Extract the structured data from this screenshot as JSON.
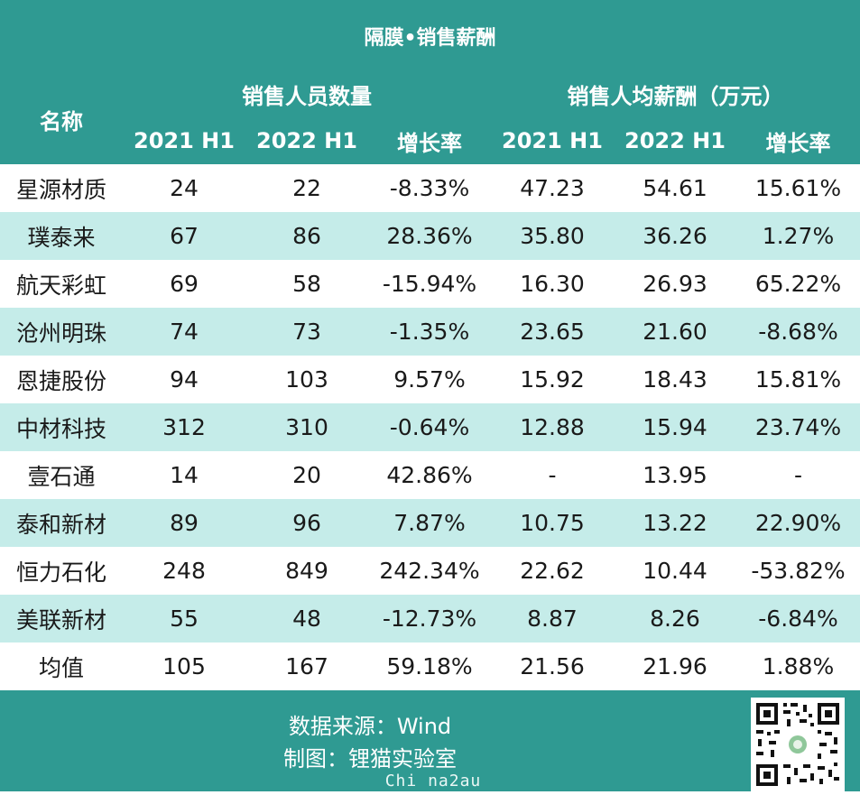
{
  "title": "隔膜•销售薪酬",
  "header": {
    "name_col": "名称",
    "group1": "销售人员数量",
    "group2": "销售人均薪酬（万元）",
    "sub_columns": [
      "2021 H1",
      "2022 H1",
      "增长率",
      "2021 H1",
      "2022 H1",
      "增长率"
    ]
  },
  "rows": [
    {
      "name": "星源材质",
      "v": [
        "24",
        "22",
        "-8.33%",
        "47.23",
        "54.61",
        "15.61%"
      ]
    },
    {
      "name": "璞泰来",
      "v": [
        "67",
        "86",
        "28.36%",
        "35.80",
        "36.26",
        "1.27%"
      ]
    },
    {
      "name": "航天彩虹",
      "v": [
        "69",
        "58",
        "-15.94%",
        "16.30",
        "26.93",
        "65.22%"
      ]
    },
    {
      "name": "沧州明珠",
      "v": [
        "74",
        "73",
        "-1.35%",
        "23.65",
        "21.60",
        "-8.68%"
      ]
    },
    {
      "name": "恩捷股份",
      "v": [
        "94",
        "103",
        "9.57%",
        "15.92",
        "18.43",
        "15.81%"
      ]
    },
    {
      "name": "中材科技",
      "v": [
        "312",
        "310",
        "-0.64%",
        "12.88",
        "15.94",
        "23.74%"
      ]
    },
    {
      "name": "壹石通",
      "v": [
        "14",
        "20",
        "42.86%",
        "-",
        "13.95",
        "-"
      ]
    },
    {
      "name": "泰和新材",
      "v": [
        "89",
        "96",
        "7.87%",
        "10.75",
        "13.22",
        "22.90%"
      ]
    },
    {
      "name": "恒力石化",
      "v": [
        "248",
        "849",
        "242.34%",
        "22.62",
        "10.44",
        "-53.82%"
      ]
    },
    {
      "name": "美联新材",
      "v": [
        "55",
        "48",
        "-12.73%",
        "8.87",
        "8.26",
        "-6.84%"
      ]
    },
    {
      "name": "均值",
      "v": [
        "105",
        "167",
        "59.18%",
        "21.56",
        "21.96",
        "1.88%"
      ]
    }
  ],
  "footer": {
    "source": "数据来源：Wind",
    "credit": "制图：锂猫实验室",
    "watermark": "Chi na2au"
  },
  "colors": {
    "header_bg": "#2f9a92",
    "alt_row_bg": "#c5ece9",
    "text": "#1a1a1a"
  },
  "icons": {
    "qr": "qr-code-icon"
  }
}
